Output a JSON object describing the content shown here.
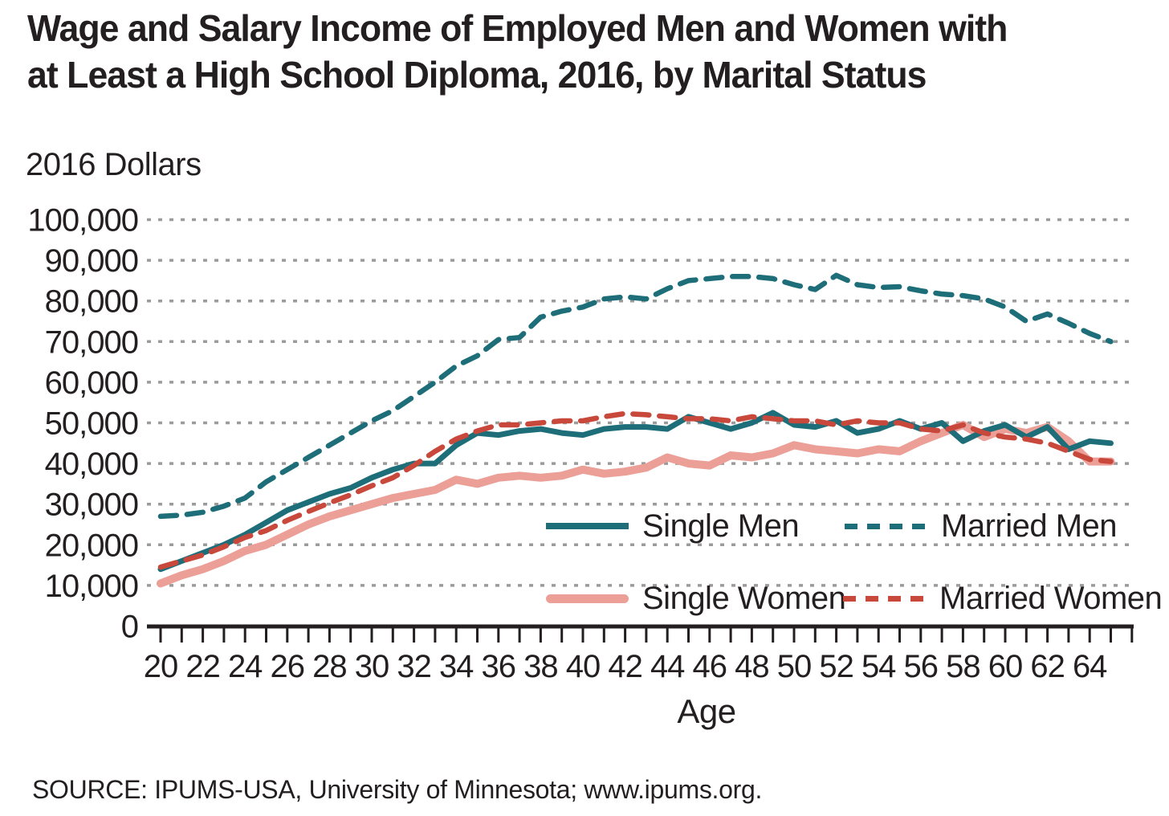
{
  "title": {
    "line1": "Wage and Salary Income of Employed Men and Women with",
    "line2": "at Least a High School Diploma, 2016, by Marital Status"
  },
  "y_axis_title": "2016 Dollars",
  "x_axis_title": "Age",
  "source": "SOURCE: IPUMS-USA, University of Minnesota; www.ipums.org.",
  "colors": {
    "teal": "#1e6e79",
    "salmon": "#eb9f97",
    "red": "#c8483c",
    "grid_dots": "#9b9b9b",
    "axis": "#231f20",
    "text": "#231f20",
    "background": "#ffffff"
  },
  "chart_data": {
    "type": "line",
    "title": "Wage and Salary Income of Employed Men and Women with at Least a High School Diploma, 2016, by Marital Status",
    "xlabel": "Age",
    "ylabel": "2016 Dollars",
    "xlim": [
      19.3,
      66
    ],
    "ylim": [
      0,
      100000
    ],
    "grid": "horizontal dotted gray lines at each 10,000",
    "legend_position": "inside plot, lower right, two columns",
    "x": [
      20,
      21,
      22,
      23,
      24,
      25,
      26,
      27,
      28,
      29,
      30,
      31,
      32,
      33,
      34,
      35,
      36,
      37,
      38,
      39,
      40,
      41,
      42,
      43,
      44,
      45,
      46,
      47,
      48,
      49,
      50,
      51,
      52,
      53,
      54,
      55,
      56,
      57,
      58,
      59,
      60,
      61,
      62,
      63,
      64,
      65
    ],
    "x_tick_labels": [
      "20",
      "22",
      "24",
      "26",
      "28",
      "30",
      "32",
      "34",
      "36",
      "38",
      "40",
      "42",
      "44",
      "46",
      "48",
      "50",
      "52",
      "54",
      "56",
      "58",
      "60",
      "62",
      "64"
    ],
    "y_ticks": [
      {
        "value": 100000,
        "label": "100,000"
      },
      {
        "value": 90000,
        "label": "90,000"
      },
      {
        "value": 80000,
        "label": "80,000"
      },
      {
        "value": 70000,
        "label": "70,000"
      },
      {
        "value": 60000,
        "label": "60,000"
      },
      {
        "value": 50000,
        "label": "50,000"
      },
      {
        "value": 40000,
        "label": "40,000"
      },
      {
        "value": 30000,
        "label": "30,000"
      },
      {
        "value": 20000,
        "label": "20,000"
      },
      {
        "value": 10000,
        "label": "10,000"
      },
      {
        "value": 0,
        "label": "0"
      }
    ],
    "series": [
      {
        "name": "Single Men",
        "color": "#1e6e79",
        "style": "solid",
        "width": 7,
        "values": [
          14000,
          16000,
          18000,
          20000,
          22500,
          25500,
          28500,
          30500,
          32500,
          34000,
          36500,
          38500,
          40000,
          40000,
          44500,
          47500,
          47000,
          48000,
          48500,
          47500,
          47000,
          48500,
          49000,
          49000,
          48500,
          51500,
          50000,
          48500,
          50000,
          52500,
          49500,
          49000,
          50500,
          47500,
          48500,
          50500,
          48500,
          50000,
          45500,
          48000,
          49500,
          46500,
          49000,
          43500,
          45500,
          45000
        ]
      },
      {
        "name": "Married Men",
        "color": "#1e6e79",
        "style": "dashed",
        "width": 6.5,
        "values": [
          27000,
          27300,
          28000,
          29500,
          31500,
          35500,
          38500,
          41500,
          44500,
          47500,
          50500,
          53000,
          56500,
          60000,
          64000,
          66500,
          70500,
          71000,
          76000,
          77500,
          78500,
          80500,
          81000,
          80500,
          83000,
          85000,
          85500,
          86000,
          86000,
          85500,
          84000,
          82800,
          86300,
          84000,
          83300,
          83500,
          82500,
          81700,
          81300,
          80500,
          78500,
          75000,
          76800,
          74500,
          72000,
          70000
        ]
      },
      {
        "name": "Single Women",
        "color": "#eb9f97",
        "style": "solid",
        "width": 10,
        "values": [
          10500,
          12500,
          14000,
          16000,
          18500,
          20000,
          22500,
          25000,
          27000,
          28500,
          30000,
          31500,
          32500,
          33500,
          36000,
          35000,
          36500,
          37000,
          36500,
          37000,
          38500,
          37500,
          38000,
          39000,
          41500,
          40000,
          39500,
          42000,
          41500,
          42500,
          44500,
          43500,
          43000,
          42500,
          43500,
          43000,
          45500,
          47500,
          49500,
          46500,
          48500,
          47500,
          49000,
          45500,
          40500,
          40500
        ]
      },
      {
        "name": "Married Women",
        "color": "#c8483c",
        "style": "dashed",
        "width": 6.5,
        "values": [
          14500,
          16000,
          17500,
          19500,
          21800,
          23500,
          26000,
          28200,
          30300,
          32300,
          34500,
          36500,
          39500,
          43000,
          46000,
          48000,
          49500,
          49500,
          50000,
          50500,
          50500,
          51500,
          52300,
          52000,
          51500,
          51000,
          51000,
          50500,
          51500,
          51000,
          50500,
          50500,
          49500,
          50500,
          50000,
          50000,
          48500,
          48000,
          49500,
          47500,
          46500,
          46000,
          45000,
          43000,
          41000,
          40500
        ]
      }
    ]
  }
}
